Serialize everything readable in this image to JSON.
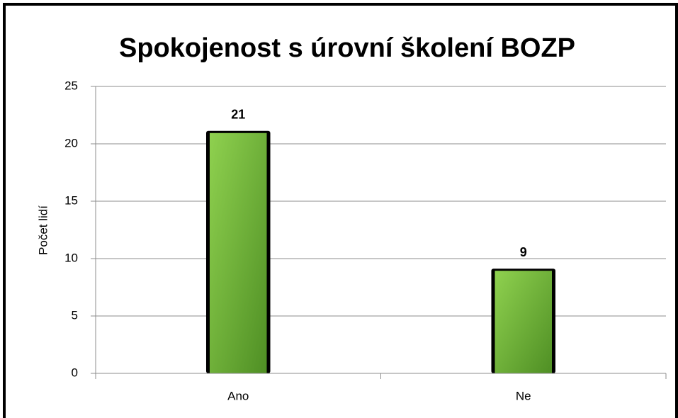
{
  "chart_data": {
    "type": "bar",
    "title": "Spokojenost s úrovní školení BOZP",
    "ylabel": "Počet lidí",
    "categories": [
      "Ano",
      "Ne"
    ],
    "values": [
      21,
      9
    ],
    "color": "#6cb33a",
    "ylim": [
      0,
      25
    ],
    "yticks": [
      0,
      5,
      10,
      15,
      20,
      25
    ],
    "grid": true
  }
}
